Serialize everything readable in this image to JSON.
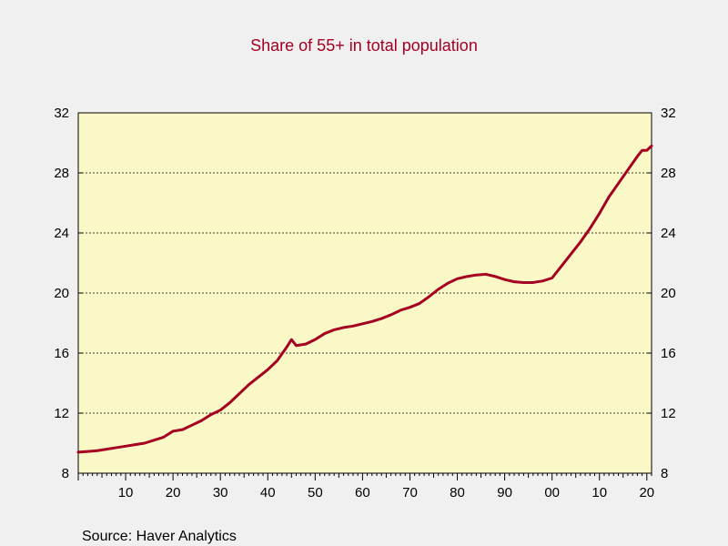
{
  "chart_data": {
    "type": "line",
    "title": "Share of 55+ in total population",
    "source": "Source:  Haver Analytics",
    "colors": {
      "line": "#a50021",
      "plot_background": "#fbf8c8",
      "page_background": "#f0f0f0",
      "title": "#a50021"
    },
    "grid": true,
    "grid_style": "dashed-horizontal",
    "x_tick_labels": [
      "10",
      "20",
      "30",
      "40",
      "50",
      "60",
      "70",
      "80",
      "90",
      "00",
      "10",
      "20"
    ],
    "x_tick_years": [
      1910,
      1920,
      1930,
      1940,
      1950,
      1960,
      1970,
      1980,
      1990,
      2000,
      2010,
      2020
    ],
    "xlim": [
      1900,
      2021
    ],
    "y_ticks": [
      8,
      12,
      16,
      20,
      24,
      28,
      32
    ],
    "ylim": [
      8,
      32
    ],
    "y_axis_sides": [
      "left",
      "right"
    ],
    "series": [
      {
        "x": [
          1900,
          1902,
          1904,
          1906,
          1908,
          1910,
          1912,
          1914,
          1916,
          1918,
          1920,
          1922,
          1924,
          1926,
          1928,
          1930,
          1932,
          1934,
          1936,
          1938,
          1940,
          1942,
          1944,
          1945,
          1946,
          1948,
          1950,
          1952,
          1954,
          1956,
          1958,
          1960,
          1962,
          1964,
          1966,
          1968,
          1970,
          1972,
          1974,
          1976,
          1978,
          1980,
          1982,
          1984,
          1986,
          1988,
          1990,
          1992,
          1994,
          1996,
          1998,
          2000,
          2002,
          2004,
          2006,
          2008,
          2010,
          2012,
          2014,
          2016,
          2018,
          2019,
          2020,
          2021
        ],
        "values": [
          9.4,
          9.45,
          9.5,
          9.6,
          9.7,
          9.8,
          9.9,
          10.0,
          10.2,
          10.4,
          10.8,
          10.9,
          11.2,
          11.5,
          11.9,
          12.2,
          12.7,
          13.3,
          13.9,
          14.4,
          14.9,
          15.5,
          16.4,
          16.9,
          16.5,
          16.6,
          16.9,
          17.3,
          17.55,
          17.7,
          17.8,
          17.95,
          18.1,
          18.3,
          18.55,
          18.85,
          19.05,
          19.3,
          19.75,
          20.25,
          20.65,
          20.95,
          21.1,
          21.2,
          21.25,
          21.1,
          20.9,
          20.75,
          20.7,
          20.7,
          20.8,
          21.0,
          21.8,
          22.6,
          23.4,
          24.3,
          25.3,
          26.4,
          27.3,
          28.2,
          29.1,
          29.5,
          29.5,
          29.8
        ]
      }
    ]
  }
}
